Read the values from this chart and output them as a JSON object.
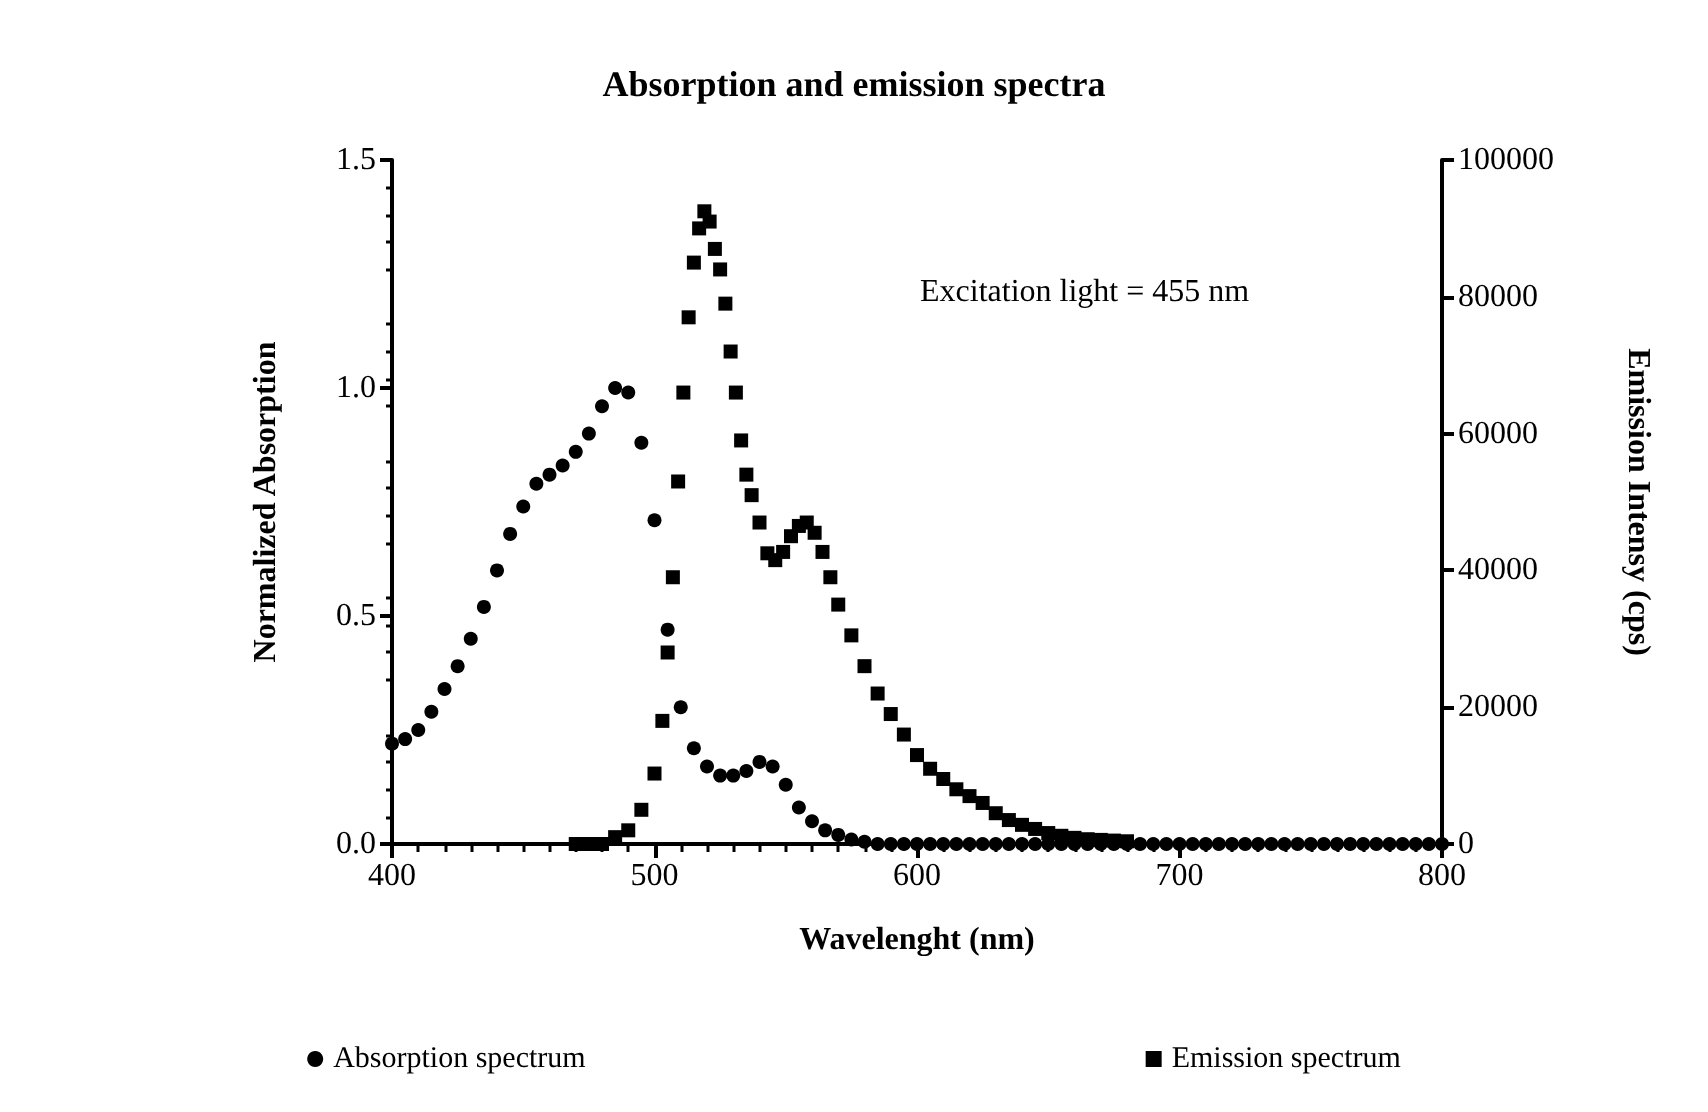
{
  "chart_data": {
    "type": "scatter",
    "title": "Absorption and emission spectra",
    "xlabel": "Wavelenght (nm)",
    "ylabel": "Normalized Absorption",
    "y2label": "Emission Intensy (cps)",
    "annotations": [
      "Excitation light = 455 nm"
    ],
    "xlim": [
      400,
      800
    ],
    "xticks": [
      400,
      500,
      600,
      700,
      800
    ],
    "ylim": [
      0,
      1.5
    ],
    "yticks": [
      {
        "value": 0,
        "label": "0.0"
      },
      0.5,
      {
        "value": 1,
        "label": "1.0"
      },
      1.5
    ],
    "y2lim": [
      0,
      100000
    ],
    "y2ticks": [
      0,
      20000,
      40000,
      60000,
      80000,
      100000
    ],
    "legend": "bottom",
    "series": [
      {
        "name": "Absorption spectrum",
        "color": "#000000",
        "marker": "circle",
        "x": [
          400,
          405,
          410,
          415,
          420,
          425,
          430,
          435,
          440,
          445,
          450,
          455,
          460,
          465,
          470,
          475,
          480,
          485,
          490,
          495,
          500,
          505,
          510,
          515,
          520,
          525,
          530,
          535,
          540,
          545,
          550,
          555,
          560,
          565,
          570,
          575,
          580,
          585,
          590,
          595,
          600,
          605,
          610,
          615,
          620,
          625,
          630,
          635,
          640,
          645,
          650,
          655,
          660,
          665,
          670,
          675,
          680,
          685,
          690,
          695,
          700,
          705,
          710,
          715,
          720,
          725,
          730,
          735,
          740,
          745,
          750,
          755,
          760,
          765,
          770,
          775,
          780,
          785,
          790,
          795,
          800
        ],
        "values": [
          0.22,
          0.23,
          0.25,
          0.29,
          0.34,
          0.39,
          0.45,
          0.52,
          0.6,
          0.68,
          0.74,
          0.79,
          0.81,
          0.83,
          0.86,
          0.9,
          0.96,
          1,
          0.99,
          0.88,
          0.71,
          0.47,
          0.3,
          0.21,
          0.17,
          0.15,
          0.15,
          0.16,
          0.18,
          0.17,
          0.13,
          0.08,
          0.05,
          0.03,
          0.02,
          0.01,
          0.005,
          0,
          0,
          0,
          0,
          0,
          0,
          0,
          0,
          0,
          0,
          0,
          0,
          0,
          0,
          0,
          0,
          0,
          0,
          0,
          0,
          0,
          0,
          0,
          0,
          0,
          0,
          0,
          0,
          0,
          0,
          0,
          0,
          0,
          0,
          0,
          0,
          0,
          0,
          0,
          0,
          0,
          0,
          0,
          0
        ]
      },
      {
        "name": "Emission spectrum",
        "color": "#000000",
        "marker": "square",
        "axis": "y2",
        "x": [
          470,
          475,
          480,
          485,
          490,
          495,
          500,
          503,
          505,
          507,
          509,
          511,
          513,
          515,
          517,
          519,
          521,
          523,
          525,
          527,
          529,
          531,
          533,
          535,
          537,
          540,
          543,
          546,
          549,
          552,
          555,
          558,
          561,
          564,
          567,
          570,
          575,
          580,
          585,
          590,
          595,
          600,
          605,
          610,
          615,
          620,
          625,
          630,
          635,
          640,
          645,
          650,
          655,
          660,
          665,
          670,
          675,
          680
        ],
        "values": [
          0,
          0,
          0,
          1000,
          2000,
          5000,
          10300,
          18000,
          28000,
          39000,
          53000,
          66000,
          77000,
          85000,
          90000,
          92500,
          91000,
          87000,
          84000,
          79000,
          72000,
          66000,
          59000,
          54000,
          51000,
          47000,
          42500,
          41500,
          42700,
          45000,
          46500,
          47000,
          45500,
          42700,
          39000,
          35000,
          30500,
          26000,
          22000,
          19000,
          16000,
          13000,
          11000,
          9500,
          8000,
          7000,
          6000,
          4500,
          3500,
          2800,
          2200,
          1600,
          1200,
          900,
          700,
          600,
          500,
          400
        ]
      }
    ]
  }
}
